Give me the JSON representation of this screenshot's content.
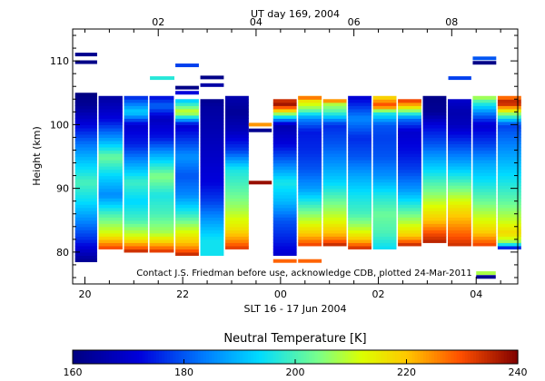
{
  "chart_data": {
    "type": "heatmap",
    "title": "UT day 169, 2004",
    "xlabel": "SLT 16 - 17 Jun 2004",
    "ylabel": "Height (km)",
    "note": "Contact J.S. Friedman before use, acknowledge CDB, plotted 24-Mar-2011",
    "xlim": [
      19.75,
      28.85
    ],
    "ylim": [
      75,
      115
    ],
    "slt_ticks": [
      {
        "value": 20,
        "label": "20"
      },
      {
        "value": 22,
        "label": "22"
      },
      {
        "value": 24,
        "label": "00"
      },
      {
        "value": 26,
        "label": "02"
      },
      {
        "value": 28,
        "label": "04"
      }
    ],
    "ut_ticks": [
      {
        "value": 21.5,
        "label": "02"
      },
      {
        "value": 23.5,
        "label": "04"
      },
      {
        "value": 25.5,
        "label": "06"
      },
      {
        "value": 27.5,
        "label": "08"
      }
    ],
    "y_ticks": [
      {
        "value": 80,
        "label": "80"
      },
      {
        "value": 90,
        "label": "90"
      },
      {
        "value": 100,
        "label": "100"
      },
      {
        "value": 110,
        "label": "110"
      }
    ],
    "colorbar": {
      "label": "Neutral Temperature [K]",
      "range": [
        160,
        240
      ],
      "ticks": [
        {
          "value": 160,
          "label": "160"
        },
        {
          "value": 180,
          "label": "180"
        },
        {
          "value": 200,
          "label": "200"
        },
        {
          "value": 220,
          "label": "220"
        },
        {
          "value": 240,
          "label": "240"
        }
      ]
    },
    "profiles": [
      {
        "x0": 19.8,
        "x1": 20.25,
        "bottom": 78.5,
        "top": 105.0,
        "knots": [
          [
            78.5,
            162
          ],
          [
            80,
            168
          ],
          [
            82,
            176
          ],
          [
            85,
            185
          ],
          [
            88,
            194
          ],
          [
            91,
            200
          ],
          [
            94,
            192
          ],
          [
            97,
            183
          ],
          [
            100,
            172
          ],
          [
            103,
            163
          ],
          [
            105,
            160
          ]
        ]
      },
      {
        "x0": 20.28,
        "x1": 20.77,
        "bottom": 80.5,
        "top": 104.5,
        "knots": [
          [
            80.5,
            232
          ],
          [
            81.5,
            224
          ],
          [
            83,
            212
          ],
          [
            86,
            200
          ],
          [
            89,
            185
          ],
          [
            92,
            193
          ],
          [
            95,
            203
          ],
          [
            98,
            186
          ],
          [
            101,
            172
          ],
          [
            104.5,
            164
          ]
        ]
      },
      {
        "x0": 20.8,
        "x1": 21.29,
        "bottom": 80.0,
        "top": 104.5,
        "knots": [
          [
            80,
            236
          ],
          [
            81,
            226
          ],
          [
            82.5,
            212
          ],
          [
            85,
            200
          ],
          [
            88,
            193
          ],
          [
            91,
            199
          ],
          [
            94,
            187
          ],
          [
            97,
            175
          ],
          [
            100,
            170
          ],
          [
            102,
            193
          ],
          [
            104.5,
            175
          ]
        ]
      },
      {
        "x0": 21.32,
        "x1": 21.82,
        "bottom": 80.0,
        "top": 104.5,
        "knots": [
          [
            80,
            234
          ],
          [
            81.5,
            220
          ],
          [
            83,
            208
          ],
          [
            86,
            200
          ],
          [
            89,
            196
          ],
          [
            92,
            205
          ],
          [
            95,
            190
          ],
          [
            98,
            174
          ],
          [
            101,
            168
          ],
          [
            103,
            182
          ],
          [
            104.5,
            172
          ]
        ]
      },
      {
        "x0": 21.85,
        "x1": 22.33,
        "bottom": 79.5,
        "top": 104.0,
        "knots": [
          [
            79.5,
            236
          ],
          [
            81,
            223
          ],
          [
            83,
            213
          ],
          [
            86,
            198
          ],
          [
            89,
            185
          ],
          [
            92,
            180
          ],
          [
            95,
            186
          ],
          [
            98,
            176
          ],
          [
            100,
            170
          ],
          [
            102,
            212
          ],
          [
            104,
            190
          ]
        ]
      },
      {
        "x0": 22.36,
        "x1": 22.84,
        "bottom": 79.5,
        "top": 104.0,
        "knots": [
          [
            79.5,
            195
          ],
          [
            82,
            195
          ],
          [
            85,
            187
          ],
          [
            88,
            178
          ],
          [
            91,
            172
          ],
          [
            94,
            170
          ],
          [
            97,
            168
          ],
          [
            100,
            166
          ],
          [
            103,
            164
          ],
          [
            104,
            162
          ]
        ]
      },
      {
        "x0": 22.87,
        "x1": 23.35,
        "bottom": 80.5,
        "top": 104.5,
        "knots": [
          [
            80.5,
            233
          ],
          [
            82,
            224
          ],
          [
            84,
            215
          ],
          [
            87,
            207
          ],
          [
            90,
            201
          ],
          [
            93,
            196
          ],
          [
            96,
            178
          ],
          [
            99,
            168
          ],
          [
            102,
            163
          ],
          [
            104.5,
            166
          ]
        ]
      },
      {
        "x0": 23.85,
        "x1": 24.33,
        "bottom": 79.5,
        "top": 104.0,
        "knots": [
          [
            79.5,
            170
          ],
          [
            82,
            175
          ],
          [
            85,
            180
          ],
          [
            88,
            190
          ],
          [
            91,
            196
          ],
          [
            94,
            183
          ],
          [
            97,
            172
          ],
          [
            100,
            166
          ],
          [
            101.5,
            200
          ],
          [
            102.5,
            225
          ],
          [
            103.3,
            238
          ],
          [
            104,
            232
          ]
        ]
      },
      {
        "x0": 24.36,
        "x1": 24.84,
        "bottom": 81.0,
        "top": 104.5,
        "knots": [
          [
            81,
            232
          ],
          [
            82.5,
            222
          ],
          [
            84.5,
            212
          ],
          [
            87,
            201
          ],
          [
            90,
            187
          ],
          [
            93,
            180
          ],
          [
            96,
            176
          ],
          [
            99,
            174
          ],
          [
            101,
            185
          ],
          [
            102.5,
            205
          ],
          [
            104,
            218
          ]
        ]
      },
      {
        "x0": 24.87,
        "x1": 25.35,
        "bottom": 81.0,
        "top": 104.0,
        "knots": [
          [
            81,
            236
          ],
          [
            82.5,
            223
          ],
          [
            85,
            212
          ],
          [
            88,
            203
          ],
          [
            91,
            193
          ],
          [
            94,
            186
          ],
          [
            97,
            180
          ],
          [
            100,
            176
          ],
          [
            102,
            200
          ],
          [
            103.5,
            210
          ],
          [
            104,
            238
          ]
        ]
      },
      {
        "x0": 25.38,
        "x1": 25.86,
        "bottom": 80.5,
        "top": 104.5,
        "knots": [
          [
            80.5,
            235
          ],
          [
            82,
            220
          ],
          [
            84,
            208
          ],
          [
            86,
            200
          ],
          [
            89,
            195
          ],
          [
            92,
            188
          ],
          [
            95,
            180
          ],
          [
            98,
            176
          ],
          [
            101,
            185
          ],
          [
            104.5,
            170
          ]
        ]
      },
      {
        "x0": 25.89,
        "x1": 26.37,
        "bottom": 80.5,
        "top": 104.5,
        "knots": [
          [
            80.5,
            194
          ],
          [
            83,
            200
          ],
          [
            86,
            203
          ],
          [
            89,
            196
          ],
          [
            92,
            186
          ],
          [
            95,
            180
          ],
          [
            98,
            178
          ],
          [
            100,
            180
          ],
          [
            102,
            198
          ],
          [
            103,
            232
          ],
          [
            104.5,
            216
          ]
        ]
      },
      {
        "x0": 26.4,
        "x1": 26.88,
        "bottom": 81.0,
        "top": 104.0,
        "knots": [
          [
            81,
            236
          ],
          [
            82.5,
            220
          ],
          [
            84.5,
            210
          ],
          [
            87,
            199
          ],
          [
            90,
            186
          ],
          [
            93,
            178
          ],
          [
            96,
            173
          ],
          [
            99,
            170
          ],
          [
            101,
            183
          ],
          [
            103,
            220
          ],
          [
            104,
            234
          ]
        ]
      },
      {
        "x0": 26.91,
        "x1": 27.39,
        "bottom": 81.5,
        "top": 104.5,
        "knots": [
          [
            81.5,
            236
          ],
          [
            83,
            230
          ],
          [
            85,
            220
          ],
          [
            87,
            213
          ],
          [
            89,
            206
          ],
          [
            91,
            200
          ],
          [
            94,
            190
          ],
          [
            97,
            180
          ],
          [
            100,
            172
          ],
          [
            102,
            163
          ],
          [
            104.5,
            161
          ]
        ]
      },
      {
        "x0": 27.42,
        "x1": 27.9,
        "bottom": 81.0,
        "top": 104.0,
        "knots": [
          [
            81,
            234
          ],
          [
            83,
            228
          ],
          [
            85,
            222
          ],
          [
            87,
            216
          ],
          [
            89,
            208
          ],
          [
            91,
            200
          ],
          [
            94,
            188
          ],
          [
            97,
            178
          ],
          [
            100,
            168
          ],
          [
            102,
            166
          ],
          [
            104,
            170
          ]
        ]
      },
      {
        "x0": 27.93,
        "x1": 28.41,
        "bottom": 81.0,
        "top": 104.5,
        "knots": [
          [
            81,
            232
          ],
          [
            83,
            220
          ],
          [
            85,
            212
          ],
          [
            88,
            203
          ],
          [
            91,
            195
          ],
          [
            94,
            188
          ],
          [
            97,
            178
          ],
          [
            100,
            170
          ],
          [
            102,
            185
          ],
          [
            103.5,
            198
          ],
          [
            104.5,
            210
          ]
        ]
      },
      {
        "x0": 28.44,
        "x1": 28.92,
        "bottom": 80.5,
        "top": 104.5,
        "knots": [
          [
            80.5,
            166
          ],
          [
            81.5,
            205
          ],
          [
            83,
            218
          ],
          [
            85,
            210
          ],
          [
            88,
            202
          ],
          [
            91,
            196
          ],
          [
            94,
            190
          ],
          [
            97,
            184
          ],
          [
            100,
            178
          ],
          [
            102,
            210
          ],
          [
            103.5,
            238
          ],
          [
            104.5,
            224
          ]
        ]
      }
    ],
    "isolated_points": [
      {
        "x0": 19.8,
        "x1": 20.25,
        "height": 111.0,
        "value": 162
      },
      {
        "x0": 19.8,
        "x1": 20.25,
        "height": 109.8,
        "value": 161
      },
      {
        "x0": 21.33,
        "x1": 21.83,
        "height": 107.3,
        "value": 197
      },
      {
        "x0": 21.85,
        "x1": 22.33,
        "height": 109.3,
        "value": 178
      },
      {
        "x0": 21.85,
        "x1": 22.33,
        "height": 105.8,
        "value": 161
      },
      {
        "x0": 21.85,
        "x1": 22.33,
        "height": 105.0,
        "value": 172
      },
      {
        "x0": 22.36,
        "x1": 22.84,
        "height": 107.4,
        "value": 161
      },
      {
        "x0": 22.36,
        "x1": 22.84,
        "height": 106.2,
        "value": 165
      },
      {
        "x0": 23.35,
        "x1": 23.82,
        "height": 100.0,
        "value": 224
      },
      {
        "x0": 23.35,
        "x1": 23.82,
        "height": 99.1,
        "value": 162
      },
      {
        "x0": 23.35,
        "x1": 23.82,
        "height": 90.9,
        "value": 238
      },
      {
        "x0": 23.85,
        "x1": 24.33,
        "height": 78.6,
        "value": 228
      },
      {
        "x0": 24.36,
        "x1": 24.84,
        "height": 104.2,
        "value": 226
      },
      {
        "x0": 24.36,
        "x1": 24.84,
        "height": 78.6,
        "value": 228
      },
      {
        "x0": 27.43,
        "x1": 27.9,
        "height": 107.3,
        "value": 178
      },
      {
        "x0": 27.93,
        "x1": 28.41,
        "height": 110.4,
        "value": 180
      },
      {
        "x0": 27.93,
        "x1": 28.41,
        "height": 109.7,
        "value": 161
      },
      {
        "x0": 28.0,
        "x1": 28.4,
        "height": 76.7,
        "value": 208
      },
      {
        "x0": 28.0,
        "x1": 28.4,
        "height": 76.1,
        "value": 162
      }
    ]
  }
}
